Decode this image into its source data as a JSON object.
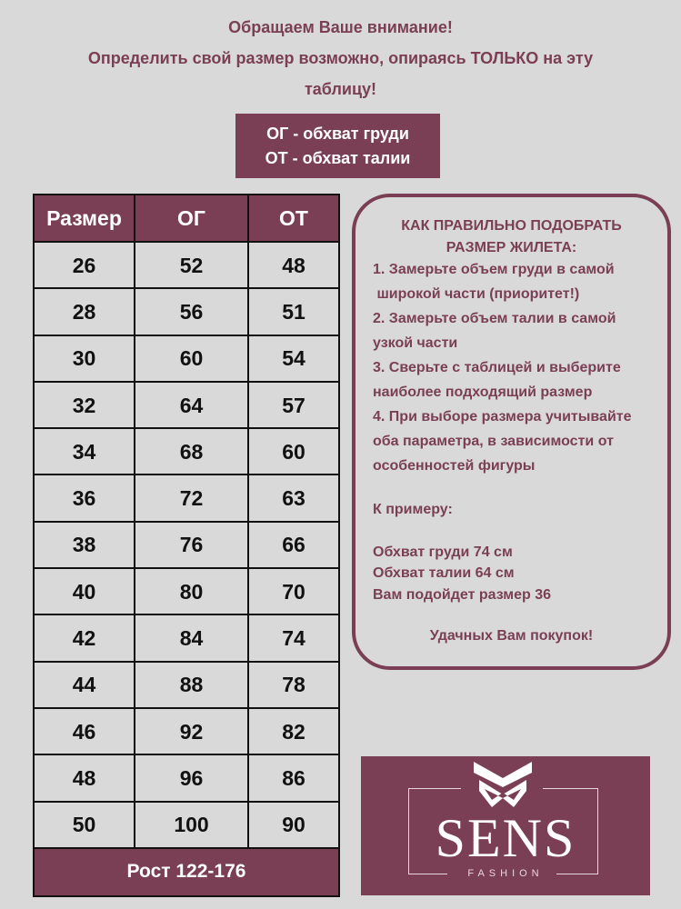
{
  "notice": [
    "Обращаем Ваше внимание!",
    "Определить свой размер возможно, опираясь ТОЛЬКО на эту",
    "таблицу!"
  ],
  "legend": [
    "ОГ - обхват груди",
    "ОТ - обхват талии"
  ],
  "table": {
    "headers": [
      "Размер",
      "ОГ",
      "ОТ"
    ],
    "rows": [
      [
        "26",
        "52",
        "48"
      ],
      [
        "28",
        "56",
        "51"
      ],
      [
        "30",
        "60",
        "54"
      ],
      [
        "32",
        "64",
        "57"
      ],
      [
        "34",
        "68",
        "60"
      ],
      [
        "36",
        "72",
        "63"
      ],
      [
        "38",
        "76",
        "66"
      ],
      [
        "40",
        "80",
        "70"
      ],
      [
        "42",
        "84",
        "74"
      ],
      [
        "44",
        "88",
        "78"
      ],
      [
        "46",
        "92",
        "82"
      ],
      [
        "48",
        "96",
        "86"
      ],
      [
        "50",
        "100",
        "90"
      ]
    ],
    "footer": "Рост 122-176"
  },
  "guide": {
    "title": [
      "КАК  ПРАВИЛЬНО ПОДОБРАТЬ",
      "РАЗМЕР ЖИЛЕТА:"
    ],
    "lines": [
      "1. Замерьте объем груди в самой",
      " широкой части (приоритет!)",
      "2. Замерьте объем талии в самой",
      "узкой части",
      "3. Сверьте с таблицей и выберите",
      "наиболее подходящий размер",
      "4. При выборе размера учитывайте",
      "оба параметра, в зависимости от",
      "особенностей фигуры"
    ],
    "example_label": "К примеру:",
    "example": [
      "Обхват груди 74 см",
      "Обхват талии 64 см",
      "Вам подойдет размер 36"
    ],
    "closing": "Удачных Вам покупок!"
  },
  "logo": {
    "name": "SENS",
    "sub": "FASHION"
  },
  "colors": {
    "accent": "#7a3f54",
    "background": "#d9d9d9"
  }
}
